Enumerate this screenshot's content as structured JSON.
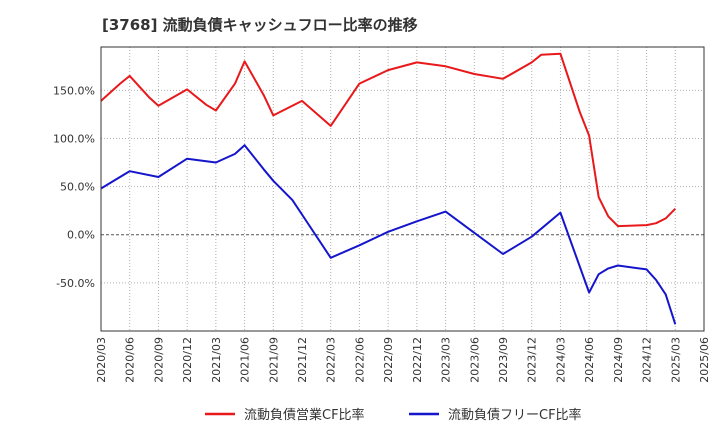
{
  "chart_data": {
    "type": "line",
    "title": "[3768]  流動負債キャッシュフロー比率の推移",
    "ylim": [
      -100,
      195
    ],
    "y_ticks": [
      150,
      100,
      50,
      0,
      -50
    ],
    "y_tick_labels": [
      "150.0%",
      "100.0%",
      "50.0%",
      "0.0%",
      "-50.0%"
    ],
    "x_tick_labels": [
      "2020/03",
      "2020/06",
      "2020/09",
      "2020/12",
      "2021/03",
      "2021/06",
      "2021/09",
      "2021/12",
      "2022/03",
      "2022/06",
      "2022/09",
      "2022/12",
      "2023/03",
      "2023/06",
      "2023/09",
      "2023/12",
      "2024/03",
      "2024/06",
      "2024/09",
      "2024/12",
      "2025/03",
      "2025/06"
    ],
    "grid": true,
    "legend_position": "bottom",
    "series": [
      {
        "name": "流動負債営業CF比率",
        "color": "#e8181b",
        "points": [
          [
            "2020/03",
            139
          ],
          [
            "2020/05",
            157
          ],
          [
            "2020/06",
            165
          ],
          [
            "2020/08",
            143
          ],
          [
            "2020/09",
            134
          ],
          [
            "2020/12",
            151
          ],
          [
            "2021/02",
            135
          ],
          [
            "2021/03",
            129
          ],
          [
            "2021/05",
            157
          ],
          [
            "2021/06",
            180
          ],
          [
            "2021/08",
            145
          ],
          [
            "2021/09",
            124
          ],
          [
            "2021/12",
            139
          ],
          [
            "2022/03",
            113
          ],
          [
            "2022/06",
            157
          ],
          [
            "2022/09",
            171
          ],
          [
            "2022/12",
            179
          ],
          [
            "2023/03",
            175
          ],
          [
            "2023/06",
            167
          ],
          [
            "2023/09",
            162
          ],
          [
            "2023/12",
            179
          ],
          [
            "2024/01",
            187
          ],
          [
            "2024/03",
            188
          ],
          [
            "2024/05",
            128
          ],
          [
            "2024/06",
            103
          ],
          [
            "2024/07",
            39
          ],
          [
            "2024/08",
            19
          ],
          [
            "2024/09",
            9
          ],
          [
            "2024/12",
            10
          ],
          [
            "2025/01",
            12
          ],
          [
            "2025/02",
            17
          ],
          [
            "2025/03",
            27
          ]
        ]
      },
      {
        "name": "流動負債フリーCF比率",
        "color": "#1515cc",
        "points": [
          [
            "2020/03",
            48
          ],
          [
            "2020/06",
            66
          ],
          [
            "2020/09",
            60
          ],
          [
            "2020/12",
            79
          ],
          [
            "2021/03",
            75
          ],
          [
            "2021/05",
            84
          ],
          [
            "2021/06",
            93
          ],
          [
            "2021/08",
            68
          ],
          [
            "2021/09",
            56
          ],
          [
            "2021/11",
            36
          ],
          [
            "2021/12",
            21
          ],
          [
            "2022/03",
            -24
          ],
          [
            "2022/06",
            -11
          ],
          [
            "2022/09",
            3
          ],
          [
            "2022/12",
            14
          ],
          [
            "2023/03",
            24
          ],
          [
            "2023/06",
            2
          ],
          [
            "2023/09",
            -20
          ],
          [
            "2023/12",
            -2
          ],
          [
            "2024/03",
            23
          ],
          [
            "2024/06",
            -60
          ],
          [
            "2024/07",
            -41
          ],
          [
            "2024/08",
            -35
          ],
          [
            "2024/09",
            -32
          ],
          [
            "2024/12",
            -36
          ],
          [
            "2025/01",
            -47
          ],
          [
            "2025/02",
            -62
          ],
          [
            "2025/03",
            -93
          ]
        ]
      }
    ]
  }
}
